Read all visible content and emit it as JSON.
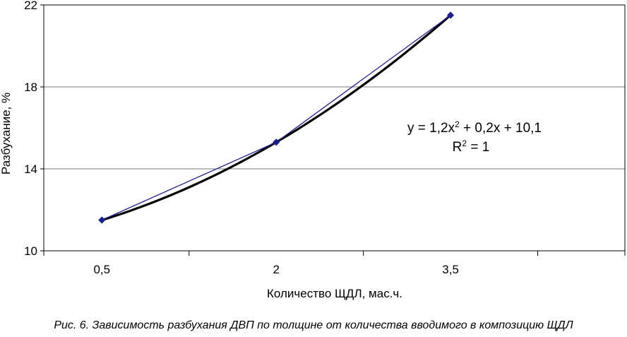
{
  "chart_data": {
    "type": "line",
    "x": [
      "0,5",
      "2",
      "3,5"
    ],
    "x_numeric": [
      0.5,
      2,
      3.5
    ],
    "series": [
      {
        "values": [
          11.5,
          15.3,
          21.5
        ]
      }
    ],
    "trendline": {
      "type": "polynomial",
      "coefficients": [
        1.2,
        0.2,
        10.1
      ],
      "equation_prefix": "y = 1,2x",
      "equation_suffix": " + 0,2x + 10,1",
      "r2_prefix": "R",
      "r2_suffix": " = 1",
      "superscript": "2"
    },
    "xlabel": "Количество ЩДЛ, мас.ч.",
    "ylabel": "Разбухание, %",
    "ylim": [
      10,
      22
    ],
    "yticks": [
      10,
      14,
      18,
      22
    ],
    "grid": true,
    "series_color": "#1f1f8c",
    "trend_color": "#000000"
  },
  "caption": "Рис. 6. Зависимость разбухания ДВП по толщине от количества вводимого в композицию ЩДЛ"
}
